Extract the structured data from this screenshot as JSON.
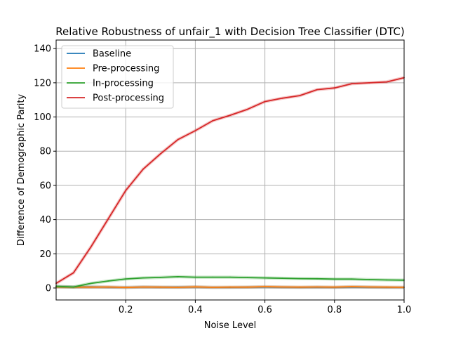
{
  "chart_data": {
    "type": "line",
    "title": "Relative Robustness of unfair_1 with Decision Tree Classifier (DTC)",
    "xlabel": "Noise Level",
    "ylabel": "Difference of Demographic Parity",
    "xlim": [
      0.0,
      1.0
    ],
    "ylim": [
      -7,
      145
    ],
    "xticks": [
      0.2,
      0.4,
      0.6,
      0.8,
      1.0
    ],
    "xtick_labels": [
      "0.2",
      "0.4",
      "0.6",
      "0.8",
      "1.0"
    ],
    "yticks": [
      0,
      20,
      40,
      60,
      80,
      100,
      120,
      140
    ],
    "ytick_labels": [
      "0",
      "20",
      "40",
      "60",
      "80",
      "100",
      "120",
      "140"
    ],
    "grid": true,
    "legend_position": "top-left",
    "x": [
      0.0,
      0.05,
      0.1,
      0.15,
      0.2,
      0.25,
      0.3,
      0.35,
      0.4,
      0.45,
      0.5,
      0.55,
      0.6,
      0.65,
      0.7,
      0.75,
      0.8,
      0.85,
      0.9,
      0.95,
      1.0
    ],
    "series": [
      {
        "name": "Baseline",
        "color": "#1f77b4",
        "values": [
          0.8,
          0.6,
          0.7,
          0.5,
          0.4,
          0.6,
          0.5,
          0.5,
          0.6,
          0.4,
          0.4,
          0.5,
          0.6,
          0.5,
          0.4,
          0.5,
          0.4,
          0.6,
          0.5,
          0.4,
          0.4
        ]
      },
      {
        "name": "Pre-processing",
        "color": "#ff7f0e",
        "values": [
          0.6,
          0.5,
          0.5,
          0.6,
          0.3,
          0.6,
          0.5,
          0.4,
          0.7,
          0.4,
          0.5,
          0.5,
          0.8,
          0.6,
          0.5,
          0.6,
          0.5,
          0.8,
          0.6,
          0.5,
          0.4
        ]
      },
      {
        "name": "In-processing",
        "color": "#2ca02c",
        "values": [
          1.0,
          0.6,
          2.7,
          4.1,
          5.3,
          5.9,
          6.2,
          6.6,
          6.3,
          6.3,
          6.3,
          6.1,
          5.9,
          5.7,
          5.5,
          5.4,
          5.2,
          5.2,
          4.9,
          4.7,
          4.6
        ]
      },
      {
        "name": "Post-processing",
        "color": "#d62728",
        "values": [
          2.7,
          8.9,
          24.0,
          40.5,
          57.0,
          69.5,
          78.5,
          86.8,
          92.0,
          97.8,
          101.0,
          104.5,
          109.0,
          111.0,
          112.5,
          116.0,
          117.0,
          119.5,
          120.0,
          120.5,
          123.0
        ]
      }
    ]
  }
}
